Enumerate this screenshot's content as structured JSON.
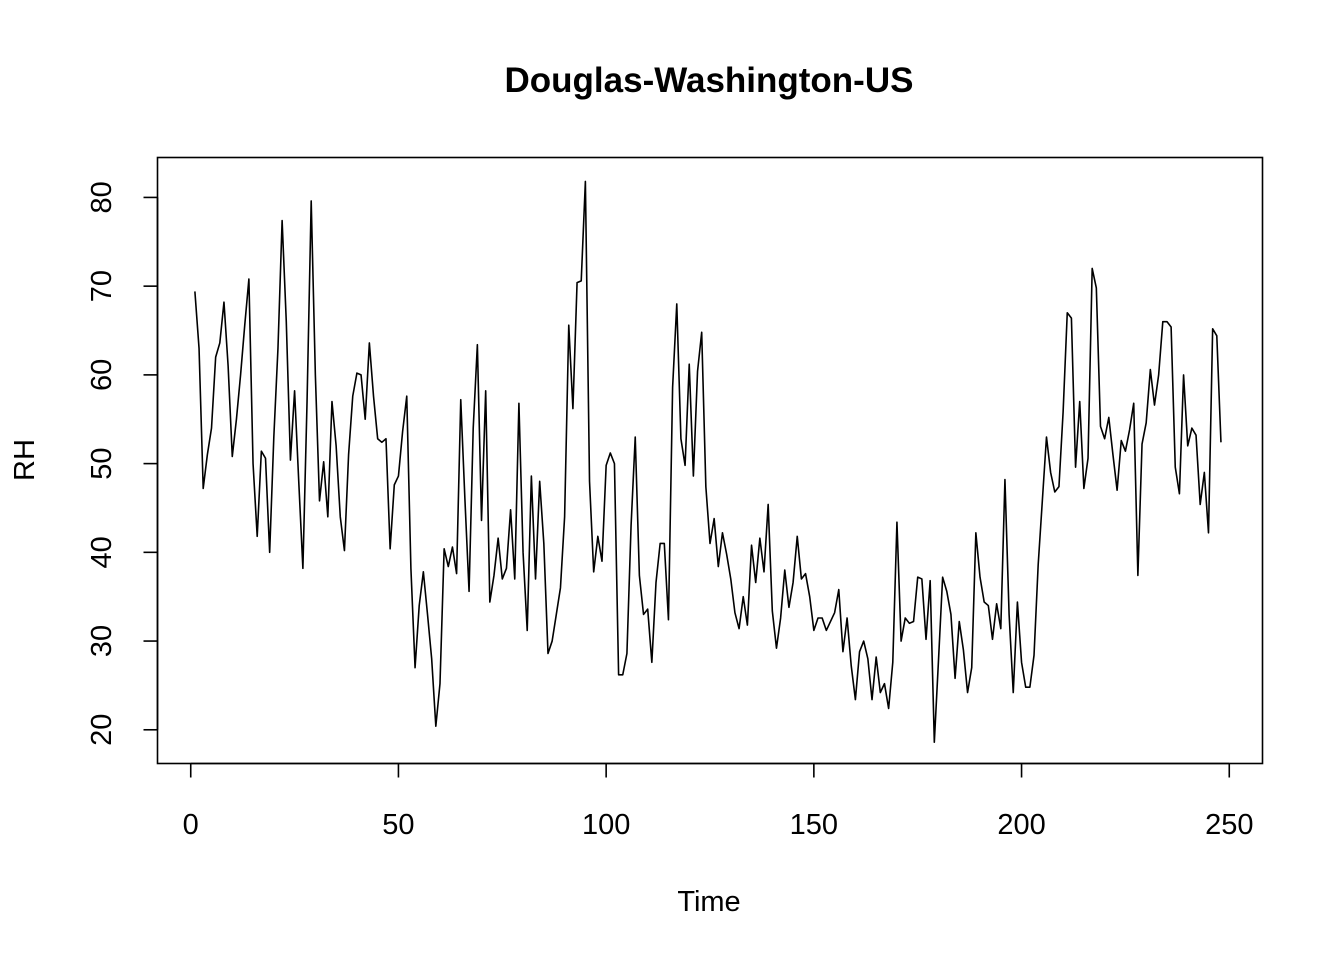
{
  "chart_data": {
    "type": "line",
    "title": "Douglas-Washington-US",
    "xlabel": "Time",
    "ylabel": "RH",
    "xlim": [
      -8,
      258
    ],
    "ylim": [
      16.2,
      84.5
    ],
    "xticks": [
      0,
      50,
      100,
      150,
      200,
      250
    ],
    "yticks": [
      20,
      30,
      40,
      50,
      60,
      70,
      80
    ],
    "grid": false,
    "legend": "none",
    "x_start": 1,
    "series": [
      {
        "values": [
          69.4,
          63.0,
          47.2,
          51.0,
          54.0,
          62.0,
          63.6,
          68.2,
          61.0,
          50.8,
          55.0,
          60.0,
          65.6,
          70.8,
          50.0,
          41.8,
          51.4,
          50.6,
          40.0,
          53.0,
          63.0,
          77.4,
          66.0,
          50.4,
          58.2,
          48.0,
          38.2,
          57.0,
          79.6,
          60.0,
          45.8,
          50.2,
          44.0,
          57.0,
          52.0,
          44.0,
          40.2,
          51.0,
          57.6,
          60.2,
          60.0,
          55.0,
          63.6,
          57.6,
          52.8,
          52.4,
          52.8,
          40.4,
          47.6,
          48.6,
          53.6,
          57.6,
          38.2,
          27.0,
          34.0,
          37.8,
          33.0,
          28.0,
          20.4,
          25.2,
          40.4,
          38.4,
          40.6,
          37.6,
          57.2,
          46.0,
          35.6,
          54.0,
          63.4,
          43.6,
          58.2,
          34.4,
          37.4,
          41.6,
          37.0,
          38.2,
          44.8,
          37.0,
          56.8,
          40.0,
          31.2,
          48.6,
          37.0,
          48.0,
          41.0,
          28.6,
          30.0,
          33.0,
          36.0,
          44.0,
          65.6,
          56.2,
          70.4,
          70.6,
          81.8,
          48.0,
          37.8,
          41.8,
          39.0,
          49.8,
          51.2,
          50.0,
          26.2,
          26.2,
          28.6,
          43.0,
          53.0,
          37.4,
          33.0,
          33.6,
          27.6,
          36.6,
          41.0,
          41.0,
          32.4,
          58.6,
          68.0,
          52.8,
          49.8,
          61.2,
          48.6,
          60.4,
          64.8,
          47.4,
          41.0,
          43.8,
          38.4,
          42.2,
          39.8,
          37.0,
          33.2,
          31.4,
          35.0,
          31.8,
          40.8,
          36.6,
          41.6,
          37.8,
          45.4,
          33.4,
          29.2,
          32.6,
          38.0,
          33.8,
          36.6,
          41.8,
          37.0,
          37.6,
          35.0,
          31.2,
          32.6,
          32.6,
          31.2,
          32.2,
          33.2,
          35.8,
          28.8,
          32.6,
          27.2,
          23.4,
          28.8,
          30.0,
          28.0,
          23.4,
          28.2,
          24.2,
          25.2,
          22.4,
          27.6,
          43.4,
          30.0,
          32.6,
          32.0,
          32.2,
          37.2,
          37.0,
          30.2,
          36.8,
          18.6,
          27.8,
          37.2,
          35.6,
          33.0,
          25.8,
          32.2,
          29.0,
          24.2,
          27.0,
          42.2,
          37.2,
          34.4,
          34.0,
          30.2,
          34.2,
          31.4,
          48.2,
          33.0,
          24.2,
          34.4,
          27.6,
          24.8,
          24.8,
          28.4,
          38.6,
          45.8,
          53.0,
          49.0,
          46.8,
          47.4,
          55.8,
          67.0,
          66.4,
          49.6,
          57.0,
          47.2,
          50.6,
          72.0,
          69.8,
          54.2,
          52.8,
          55.2,
          51.0,
          47.0,
          52.6,
          51.4,
          53.8,
          56.8,
          37.4,
          52.2,
          54.6,
          60.6,
          56.6,
          60.0,
          66.0,
          66.0,
          65.4,
          49.6,
          46.6,
          60.0,
          52.0,
          54.0,
          53.2,
          45.4,
          49.0,
          42.2,
          65.2,
          64.4,
          52.4
        ]
      }
    ]
  }
}
